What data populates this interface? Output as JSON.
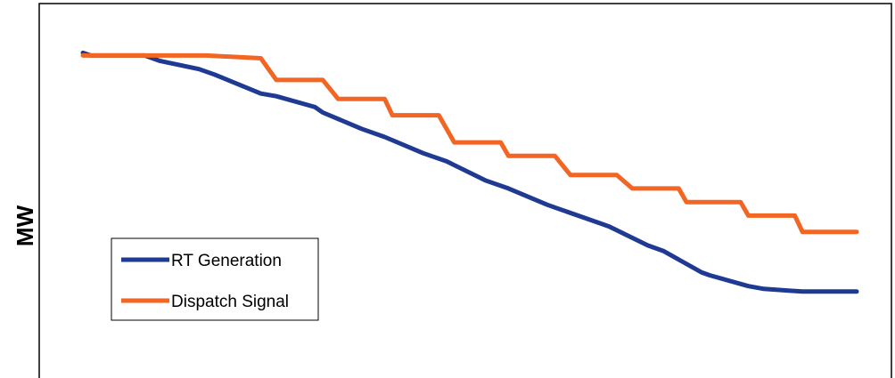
{
  "chart_data": {
    "type": "line",
    "title": "",
    "xlabel": "",
    "ylabel": "MW",
    "xlim": [
      0,
      100
    ],
    "ylim": [
      0,
      100
    ],
    "grid": false,
    "legend_position": "bottom-left",
    "series": [
      {
        "name": "RT Generation",
        "color": "#1f3a93",
        "x": [
          0,
          1,
          8,
          10,
          15,
          17,
          23,
          25,
          30,
          31,
          36,
          39,
          44,
          47,
          52,
          55,
          60,
          61,
          66,
          68,
          73,
          75,
          80,
          81,
          86,
          88,
          93,
          94,
          100
        ],
        "y": [
          92,
          91,
          91,
          89,
          86,
          84,
          77,
          76,
          72,
          70,
          64,
          61,
          55,
          52,
          45,
          42,
          36,
          35,
          30,
          28,
          21,
          19,
          11,
          10,
          6,
          5,
          4,
          4,
          4
        ]
      },
      {
        "name": "Dispatch Signal",
        "color": "#f26522",
        "x": [
          0,
          16,
          23,
          25,
          31,
          33,
          39,
          40,
          46,
          48,
          54,
          55,
          61,
          63,
          69,
          71,
          77,
          78,
          85,
          86,
          92,
          93,
          100
        ],
        "y": [
          91,
          91,
          90,
          82,
          82,
          75,
          75,
          69,
          69,
          59,
          59,
          54,
          54,
          47,
          47,
          42,
          42,
          37,
          37,
          32,
          32,
          26,
          26
        ]
      }
    ]
  }
}
